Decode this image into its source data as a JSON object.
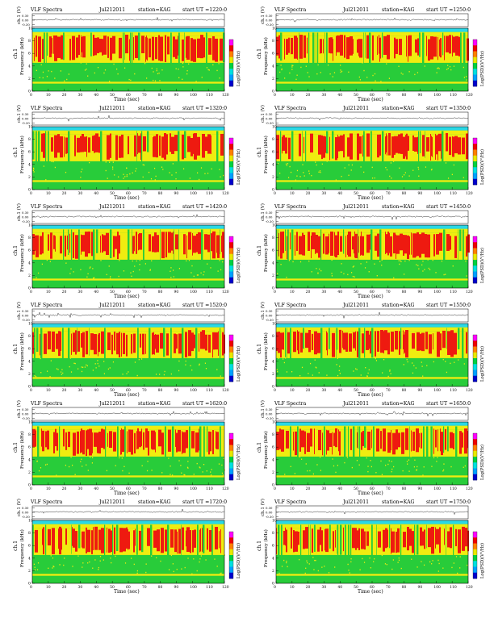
{
  "page": {
    "panels": [
      {
        "title": "VLF Spectra",
        "date": "Jul212011",
        "station": "station=KAG",
        "start": "start  UT =1220:0"
      },
      {
        "title": "VLF Spectra",
        "date": "Jul212011",
        "station": "station=KAG",
        "start": "start  UT =1250:0"
      },
      {
        "title": "VLF Spectra",
        "date": "Jul212011",
        "station": "station=KAG",
        "start": "start  UT =1320:0"
      },
      {
        "title": "VLF Spectra",
        "date": "Jul212011",
        "station": "station=KAG",
        "start": "start  UT =1350:0"
      },
      {
        "title": "VLF Spectra",
        "date": "Jul212011",
        "station": "station=KAG",
        "start": "start  UT =1420:0"
      },
      {
        "title": "VLF Spectra",
        "date": "Jul212011",
        "station": "station=KAG",
        "start": "start  UT =1450:0"
      },
      {
        "title": "VLF Spectra",
        "date": "Jul212011",
        "station": "station=KAG",
        "start": "start  UT =1520:0"
      },
      {
        "title": "VLF Spectra",
        "date": "Jul212011",
        "station": "station=KAG",
        "start": "start  UT =1550:0"
      },
      {
        "title": "VLF Spectra",
        "date": "Jul212011",
        "station": "station=KAG",
        "start": "start  UT =1620:0"
      },
      {
        "title": "VLF Spectra",
        "date": "Jul212011",
        "station": "station=KAG",
        "start": "start  UT =1650:0"
      },
      {
        "title": "VLF Spectra",
        "date": "Jul212011",
        "station": "station=KAG",
        "start": "start  UT =1720:0"
      },
      {
        "title": "VLF Spectra",
        "date": "Jul212011",
        "station": "station=KAG",
        "start": "start  UT =1750:0"
      }
    ]
  },
  "chart_data": {
    "type": "heatmap",
    "panel_count": 12,
    "layout": "6 rows x 2 columns",
    "waveform": {
      "ylabel": "ch.1 (V)",
      "yticks": [
        "0.30",
        "0.00",
        "-0.30"
      ],
      "ylim": [
        -0.3,
        0.3
      ]
    },
    "spectrogram": {
      "ylabel": "Frequency  (kHz)",
      "ylabel_ch": "ch.1",
      "xlabel": "Time  (sec)",
      "xlim": [
        0,
        120
      ],
      "ylim": [
        0,
        10
      ],
      "xticks": [
        0,
        10,
        20,
        30,
        40,
        50,
        60,
        70,
        80,
        90,
        100,
        110,
        120
      ],
      "yticks": [
        0,
        2,
        4,
        6,
        8,
        10
      ],
      "bands": [
        {
          "from_khz": 0.0,
          "to_khz": 1.2,
          "level": "green"
        },
        {
          "from_khz": 1.2,
          "to_khz": 1.5,
          "level": "yellow"
        },
        {
          "from_khz": 1.5,
          "to_khz": 4.5,
          "level": "green/yellow"
        },
        {
          "from_khz": 4.5,
          "to_khz": 8.8,
          "level": "red/yellow"
        },
        {
          "from_khz": 8.8,
          "to_khz": 9.4,
          "level": "yellow"
        },
        {
          "from_khz": 9.4,
          "to_khz": 10.0,
          "level": "cyan"
        }
      ]
    },
    "colorbar": {
      "label": "Log(PSD)(V²/Hz)",
      "colors": [
        "#0000cc",
        "#00a0ff",
        "#00e0e0",
        "#00d040",
        "#e8e800",
        "#ff8000",
        "#ee0000",
        "#ff00ff"
      ]
    },
    "colors": {
      "red": "#ee1a10",
      "yellow": "#f0ec10",
      "green": "#28cc3a",
      "cyan": "#2ad8e6",
      "blue": "#1040d0"
    }
  }
}
